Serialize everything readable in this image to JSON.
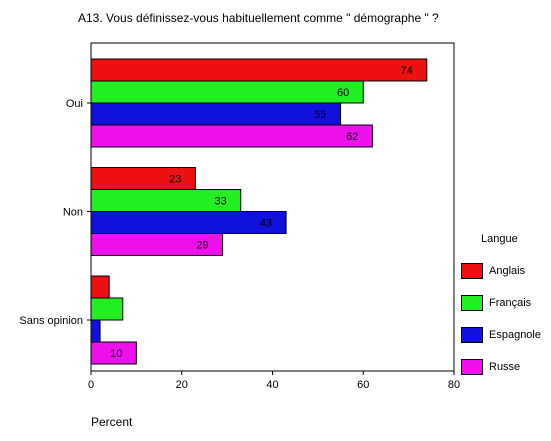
{
  "chart_data": {
    "type": "bar",
    "orientation": "horizontal",
    "title": "A13. Vous définissez-vous habituellement comme \" démographe \" ?",
    "xlabel": "Percent",
    "ylabel": "",
    "xlim": [
      0,
      80
    ],
    "x_ticks": [
      "0",
      "20",
      "40",
      "60",
      "80"
    ],
    "categories": [
      "Oui",
      "Non",
      "Sans opinion"
    ],
    "legend_title": "Langue",
    "legend_position": "right",
    "grid": false,
    "series": [
      {
        "name": "Anglais",
        "color": "#ee1111",
        "values": [
          74,
          23,
          4
        ],
        "labels": [
          "74",
          "23",
          ""
        ]
      },
      {
        "name": "Français",
        "color": "#22ee22",
        "values": [
          60,
          33,
          7
        ],
        "labels": [
          "60",
          "33",
          ""
        ]
      },
      {
        "name": "Espagnole",
        "color": "#1111dd",
        "values": [
          55,
          43,
          2
        ],
        "labels": [
          "55",
          "43",
          ""
        ]
      },
      {
        "name": "Russe",
        "color": "#ee11ee",
        "values": [
          62,
          29,
          10
        ],
        "labels": [
          "62",
          "29",
          "10"
        ]
      }
    ]
  }
}
